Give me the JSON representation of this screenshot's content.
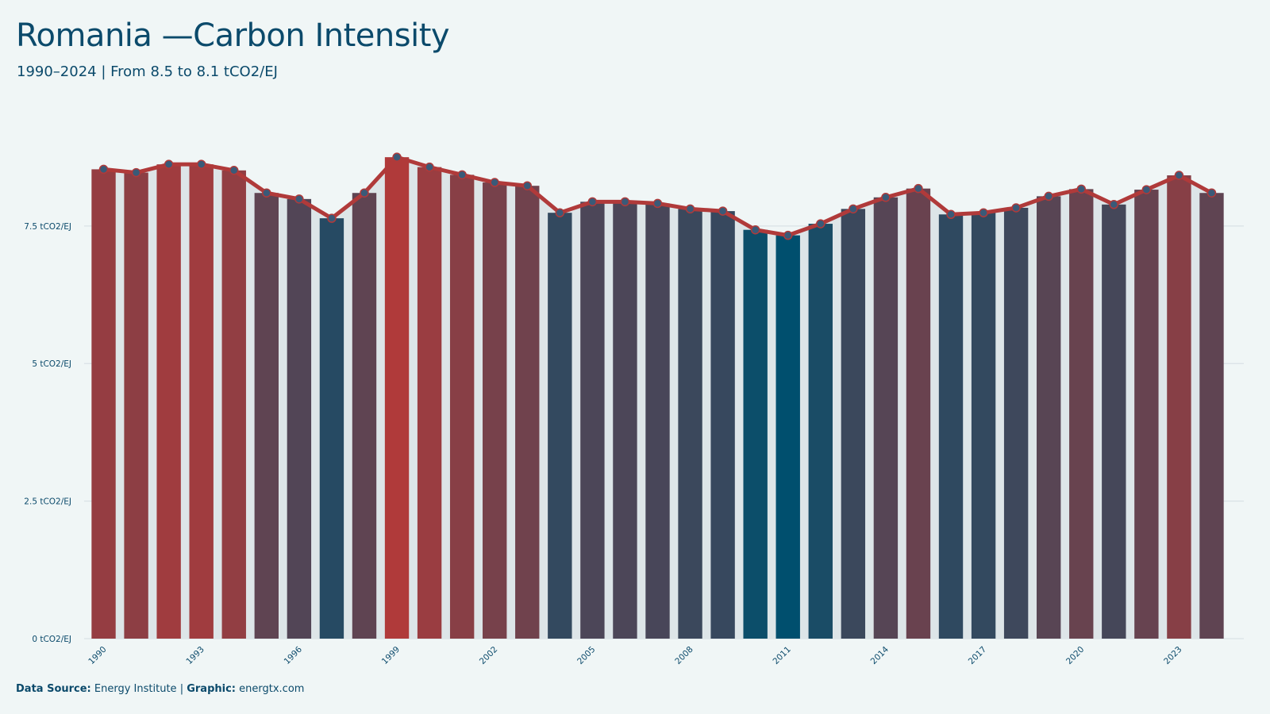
{
  "title": "Romania —Carbon Intensity",
  "subtitle": "1990–2024 | From 8.5 to 8.1 tCO2/EJ",
  "footer": {
    "source_label": "Data Source:",
    "source_value": "Energy Institute",
    "separator": "|",
    "graphic_label": "Graphic:",
    "graphic_value": "energtx.com"
  },
  "colors": {
    "high": "#b03a3a",
    "low": "#004f6e",
    "line": "#b03a3a",
    "marker_fill": "#3a5a78",
    "grid": "#d9e2e6",
    "band": "#dde5e8"
  },
  "chart_data": {
    "type": "bar",
    "unit": "tCO2/EJ",
    "x": [
      1990,
      1991,
      1992,
      1993,
      1994,
      1995,
      1996,
      1997,
      1998,
      1999,
      2000,
      2001,
      2002,
      2003,
      2004,
      2005,
      2006,
      2007,
      2008,
      2009,
      2010,
      2011,
      2012,
      2013,
      2014,
      2015,
      2016,
      2017,
      2018,
      2019,
      2020,
      2021,
      2022,
      2023,
      2024
    ],
    "values": [
      8.53,
      8.47,
      8.62,
      8.62,
      8.51,
      8.1,
      7.99,
      7.64,
      8.1,
      8.75,
      8.57,
      8.43,
      8.29,
      8.23,
      7.74,
      7.94,
      7.94,
      7.91,
      7.81,
      7.77,
      7.43,
      7.33,
      7.54,
      7.81,
      8.02,
      8.18,
      7.71,
      7.74,
      7.83,
      8.04,
      8.17,
      7.89,
      8.16,
      8.42,
      8.1
    ],
    "line_values": [
      8.53,
      8.47,
      8.62,
      8.62,
      8.51,
      8.1,
      7.99,
      7.64,
      8.1,
      8.75,
      8.57,
      8.43,
      8.29,
      8.23,
      7.74,
      7.94,
      7.94,
      7.91,
      7.81,
      7.77,
      7.43,
      7.33,
      7.54,
      7.81,
      8.02,
      8.18,
      7.71,
      7.74,
      7.83,
      8.04,
      8.17,
      7.89,
      8.16,
      8.42,
      8.1
    ],
    "x_tick_labels": [
      "1990",
      "1993",
      "1996",
      "1999",
      "2002",
      "2005",
      "2008",
      "2011",
      "2014",
      "2017",
      "2020",
      "2023"
    ],
    "y_ticks": [
      0,
      2.5,
      5,
      7.5
    ],
    "y_tick_labels": [
      "0 tCO2/EJ",
      "2.5 tCO2/EJ",
      "5 tCO2/EJ",
      "7.5 tCO2/EJ"
    ],
    "ylim": [
      0,
      9.3
    ],
    "grid": true,
    "legend": "none"
  }
}
